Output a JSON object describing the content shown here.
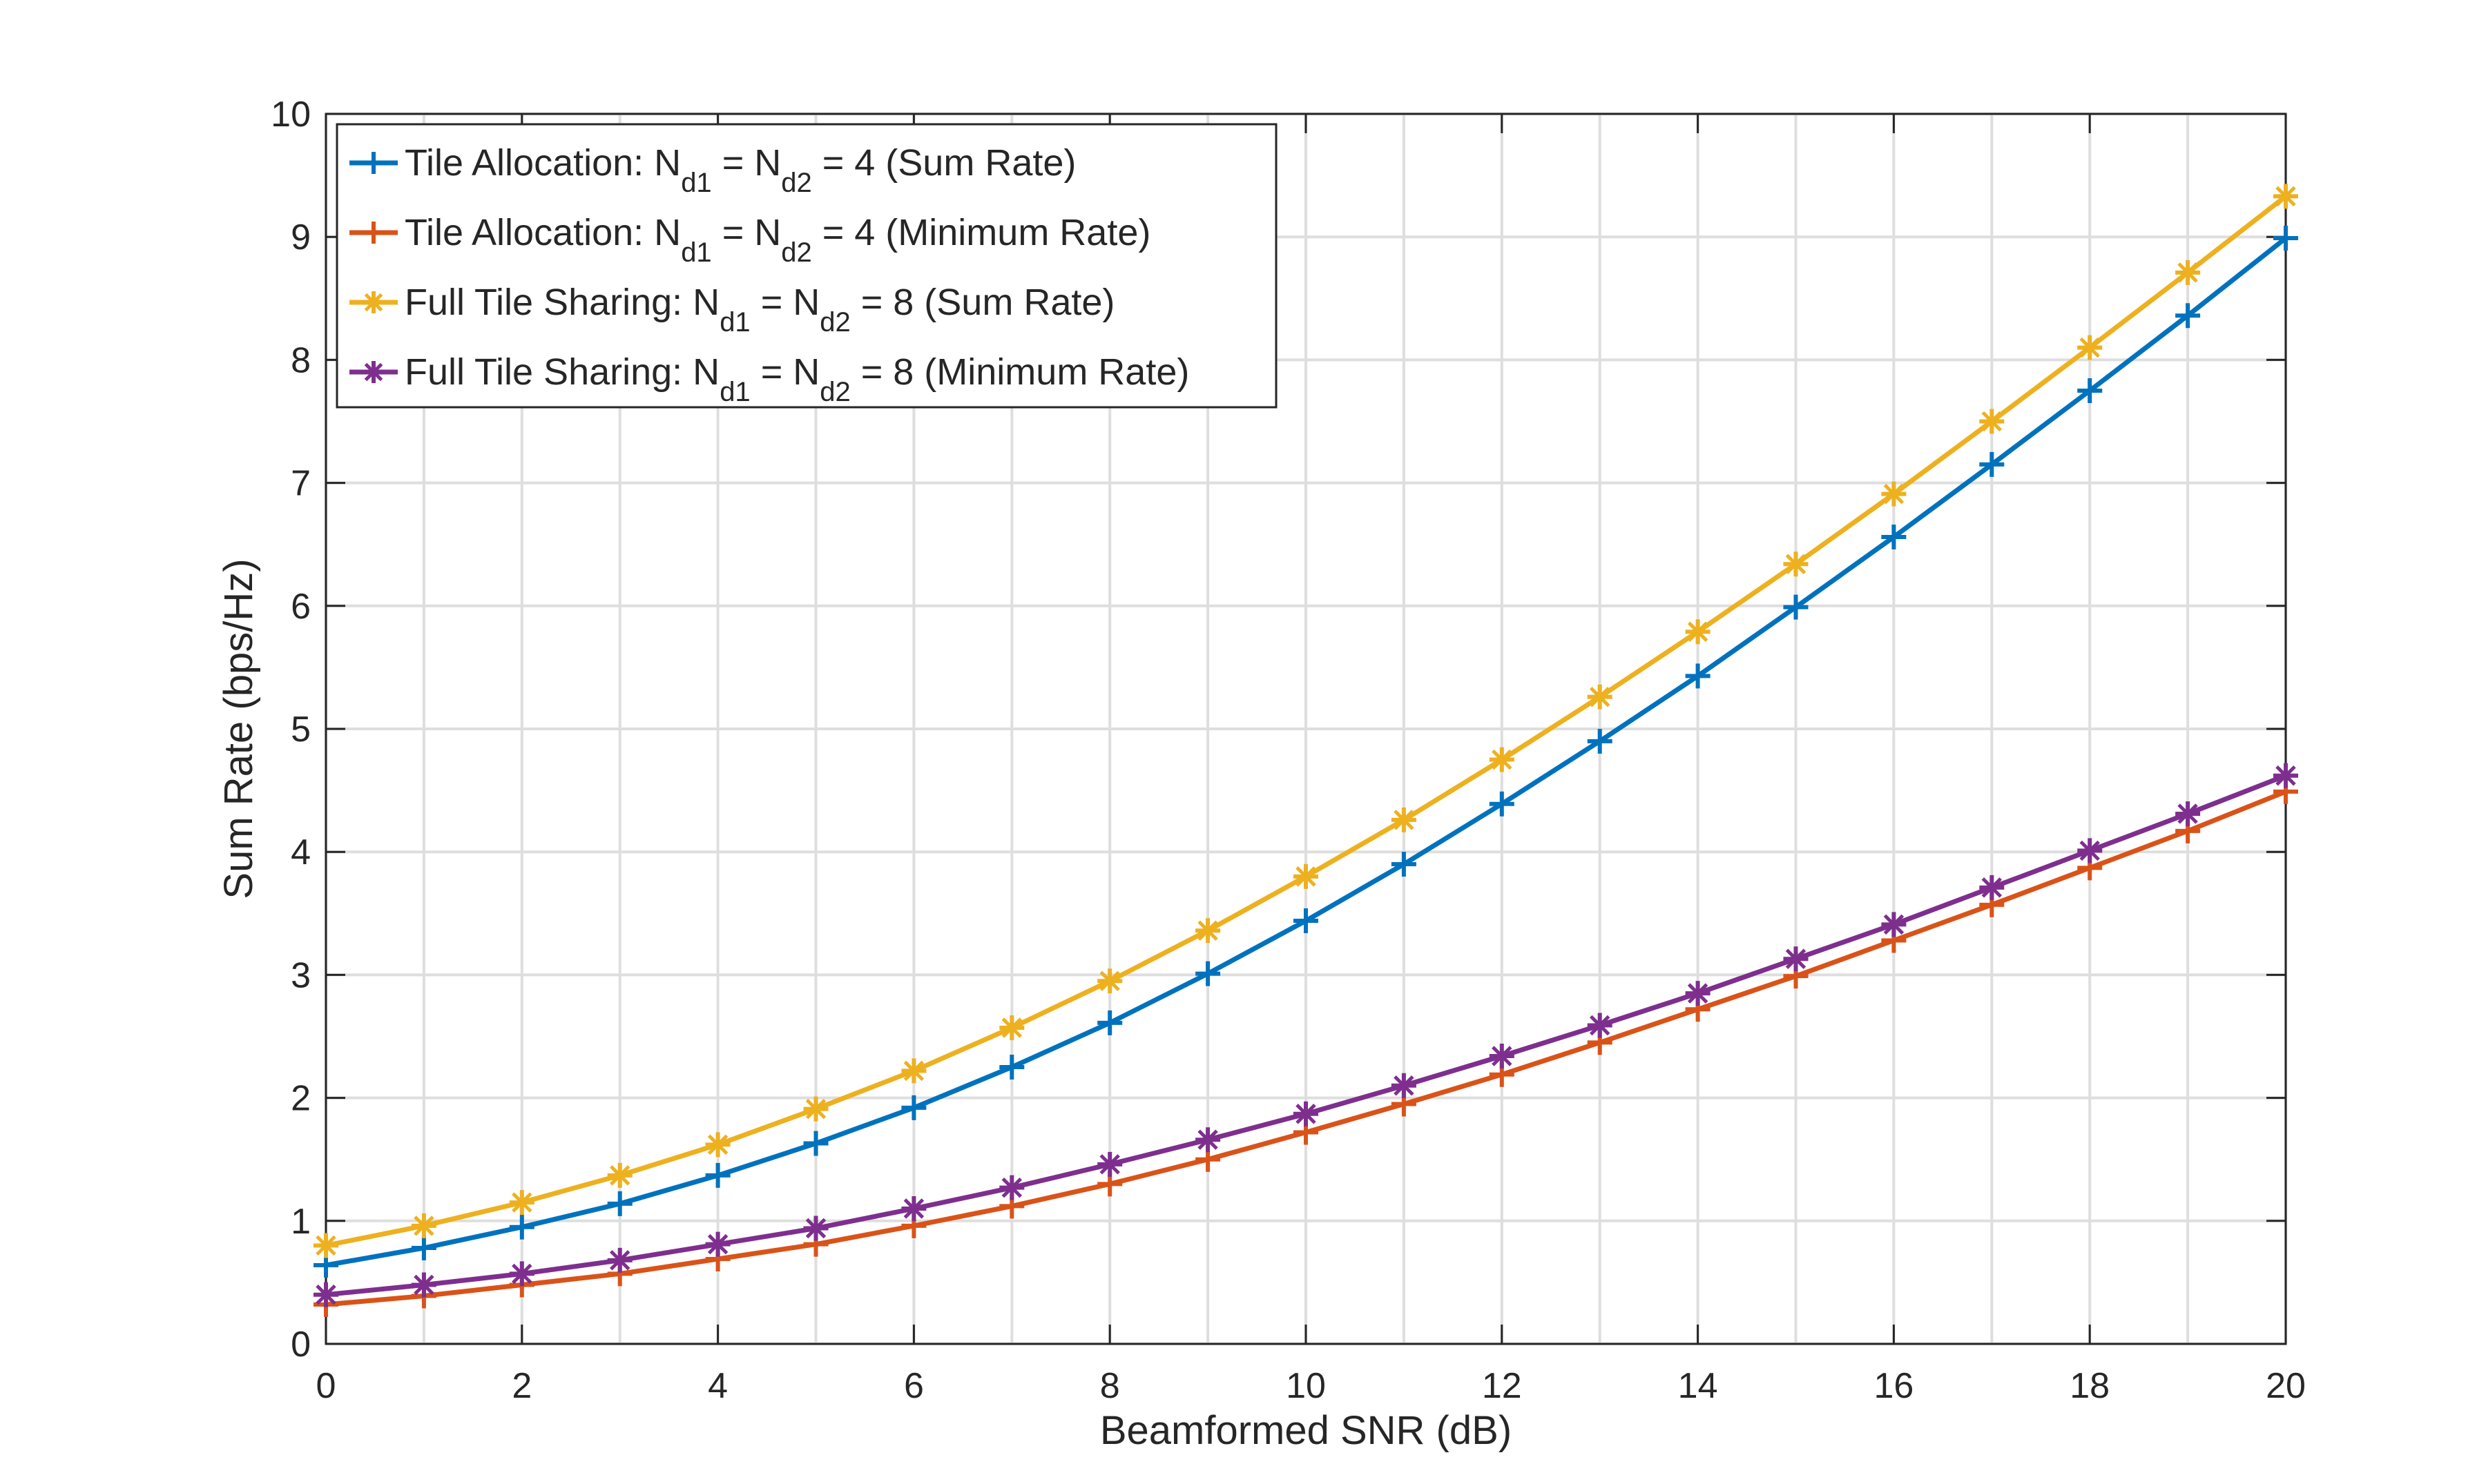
{
  "chart_data": {
    "type": "line",
    "title": "",
    "xlabel": "Beamformed SNR (dB)",
    "ylabel": "Sum Rate (bps/Hz)",
    "xlim": [
      0,
      20
    ],
    "ylim": [
      0,
      10
    ],
    "xticks": [
      "0",
      "2",
      "4",
      "6",
      "8",
      "10",
      "12",
      "14",
      "16",
      "18",
      "20"
    ],
    "yticks": [
      "0",
      "1",
      "2",
      "3",
      "4",
      "5",
      "6",
      "7",
      "8",
      "9",
      "10"
    ],
    "grid": true,
    "legend_position": "top-left",
    "x": [
      0,
      1,
      2,
      3,
      4,
      5,
      6,
      7,
      8,
      9,
      10,
      11,
      12,
      13,
      14,
      15,
      16,
      17,
      18,
      19,
      20
    ],
    "series": [
      {
        "name": "Tile Allocation: Nd1 = Nd2 = 4 (Sum Rate)",
        "legend_parts": [
          "Tile Allocation: N",
          "d1",
          " = N",
          "d2",
          " = 4 (Sum Rate)"
        ],
        "color": "#0072BD",
        "marker": "plus",
        "values": [
          0.64,
          0.78,
          0.95,
          1.14,
          1.37,
          1.63,
          1.92,
          2.25,
          2.61,
          3.01,
          3.44,
          3.9,
          4.39,
          4.9,
          5.43,
          5.99,
          6.56,
          7.15,
          7.75,
          8.36,
          8.99
        ]
      },
      {
        "name": "Tile Allocation: Nd1 = Nd2 = 4 (Minimum Rate)",
        "legend_parts": [
          "Tile Allocation: N",
          "d1",
          " = N",
          "d2",
          " = 4 (Minimum Rate)"
        ],
        "color": "#D95319",
        "marker": "plus",
        "values": [
          0.32,
          0.39,
          0.48,
          0.57,
          0.69,
          0.81,
          0.96,
          1.12,
          1.3,
          1.5,
          1.72,
          1.95,
          2.19,
          2.45,
          2.72,
          2.99,
          3.28,
          3.57,
          3.87,
          4.17,
          4.49
        ]
      },
      {
        "name": "Full Tile Sharing: Nd1 = Nd2 = 8 (Sum Rate)",
        "legend_parts": [
          "Full Tile Sharing: N",
          "d1",
          " = N",
          "d2",
          " = 8 (Sum Rate)"
        ],
        "color": "#EDB120",
        "marker": "asterisk",
        "values": [
          0.8,
          0.96,
          1.15,
          1.37,
          1.62,
          1.91,
          2.22,
          2.57,
          2.95,
          3.36,
          3.8,
          4.26,
          4.75,
          5.26,
          5.79,
          6.34,
          6.91,
          7.5,
          8.1,
          8.71,
          9.33
        ]
      },
      {
        "name": "Full Tile Sharing: Nd1 = Nd2 = 8 (Minimum Rate)",
        "legend_parts": [
          "Full Tile Sharing: N",
          "d1",
          " = N",
          "d2",
          " = 8 (Minimum Rate)"
        ],
        "color": "#7E2F8E",
        "marker": "asterisk",
        "values": [
          0.4,
          0.48,
          0.57,
          0.68,
          0.81,
          0.94,
          1.1,
          1.27,
          1.46,
          1.66,
          1.87,
          2.1,
          2.34,
          2.59,
          2.85,
          3.13,
          3.41,
          3.71,
          4.01,
          4.31,
          4.62
        ]
      }
    ]
  }
}
